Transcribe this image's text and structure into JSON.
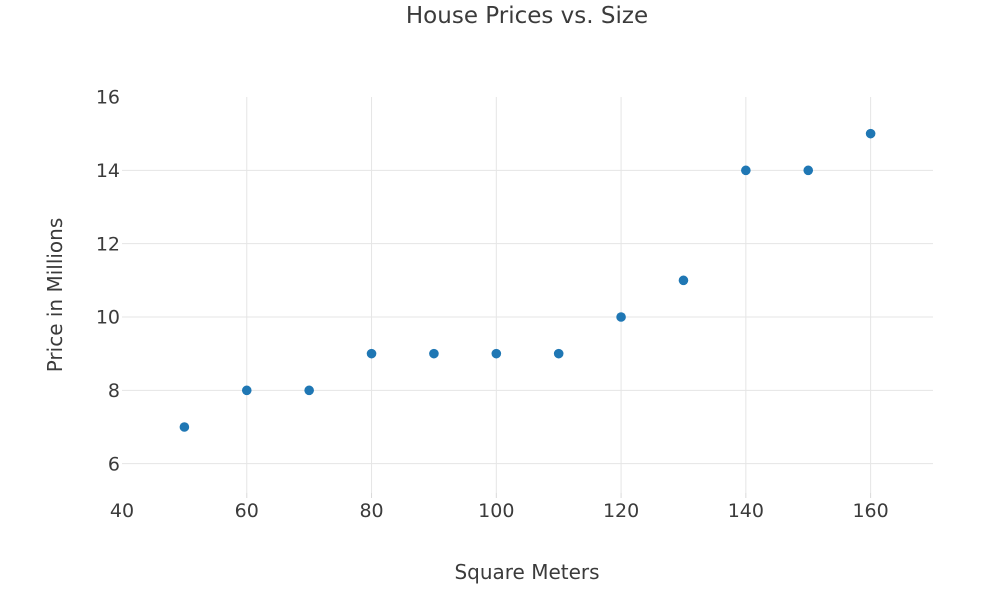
{
  "chart_data": {
    "type": "scatter",
    "title": "House Prices vs. Size",
    "xlabel": "Square Meters",
    "ylabel": "Price in Millions",
    "x": [
      50,
      60,
      70,
      80,
      90,
      100,
      110,
      120,
      130,
      140,
      150,
      160
    ],
    "y": [
      7,
      8,
      8,
      9,
      9,
      9,
      9,
      10,
      11,
      14,
      14,
      15
    ],
    "xlim": [
      40,
      170
    ],
    "ylim": [
      5.2,
      16
    ],
    "x_ticks": [
      40,
      60,
      80,
      100,
      120,
      140,
      160
    ],
    "y_ticks": [
      6,
      8,
      10,
      12,
      14,
      16
    ],
    "grid": true,
    "legend_position": "none",
    "marker_color": "#1f77b4",
    "text_color": "#3b3b3b",
    "grid_color": "#e5e5e5",
    "tick_color": "#d9d9d9",
    "background_color": "#ffffff"
  }
}
